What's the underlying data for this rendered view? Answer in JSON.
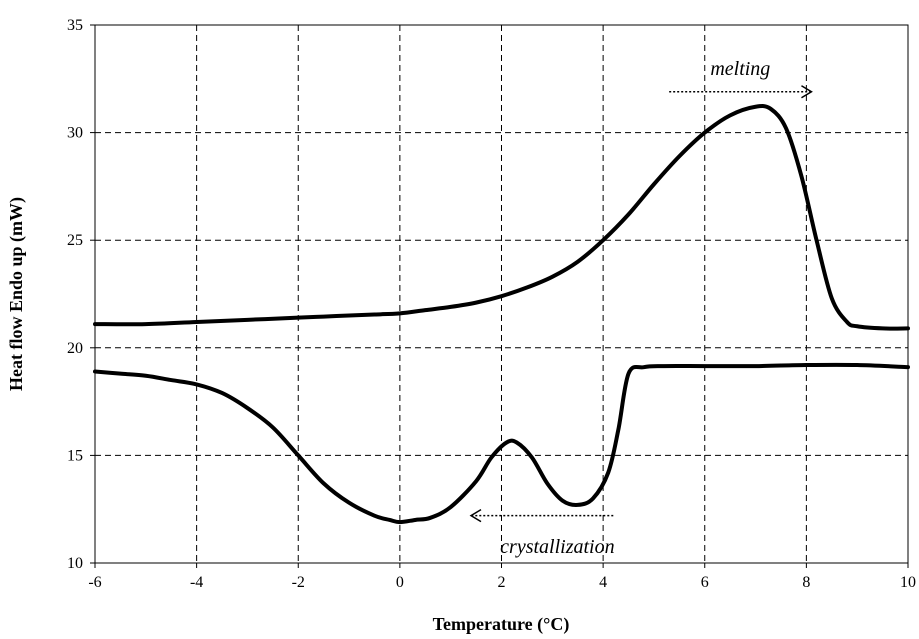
{
  "chart_data": {
    "type": "line",
    "xlabel": "Temperature (°C)",
    "ylabel": "Heat flow Endo up (mW)",
    "xlim": [
      -6,
      10
    ],
    "ylim": [
      10,
      35
    ],
    "xticks": [
      -6,
      -4,
      -2,
      0,
      2,
      4,
      6,
      8,
      10
    ],
    "yticks": [
      10,
      15,
      20,
      25,
      30,
      35
    ],
    "grid": true,
    "series": [
      {
        "x": [
          -6,
          -5,
          -4,
          -3,
          -2,
          -1.5,
          -1,
          -0.5,
          0,
          0.5,
          1,
          1.5,
          2,
          2.5,
          3,
          3.5,
          4,
          4.5,
          5,
          5.5,
          6,
          6.5,
          7,
          7.3,
          7.6,
          7.9,
          8.2,
          8.5,
          8.8,
          9,
          9.5,
          10
        ],
        "values": [
          21.1,
          21.1,
          21.2,
          21.3,
          21.4,
          21.45,
          21.5,
          21.55,
          21.6,
          21.75,
          21.9,
          22.1,
          22.4,
          22.8,
          23.3,
          24.0,
          25.0,
          26.2,
          27.6,
          28.9,
          30.0,
          30.8,
          31.2,
          31.1,
          30.2,
          28.0,
          25.0,
          22.3,
          21.2,
          21.0,
          20.9,
          20.9
        ]
      },
      {
        "x": [
          -6,
          -5.5,
          -5,
          -4.5,
          -4,
          -3.5,
          -3,
          -2.5,
          -2,
          -1.5,
          -1,
          -0.5,
          -0.2,
          0,
          0.3,
          0.6,
          1,
          1.5,
          1.8,
          2.1,
          2.3,
          2.6,
          2.9,
          3.2,
          3.5,
          3.8,
          4.1,
          4.3,
          4.5,
          4.8,
          5.2,
          6,
          7,
          8,
          9,
          10
        ],
        "values": [
          18.9,
          18.8,
          18.7,
          18.5,
          18.3,
          17.9,
          17.2,
          16.3,
          15.0,
          13.7,
          12.8,
          12.2,
          12.0,
          11.9,
          12.0,
          12.1,
          12.6,
          13.8,
          14.9,
          15.6,
          15.6,
          14.9,
          13.7,
          12.9,
          12.7,
          13.0,
          14.2,
          16.2,
          18.8,
          19.1,
          19.15,
          19.15,
          19.15,
          19.2,
          19.2,
          19.1
        ]
      }
    ],
    "annotations": [
      {
        "text": "melting",
        "arrow_from": [
          5.3,
          31.9
        ],
        "arrow_to": [
          8.1,
          31.9
        ],
        "text_at": [
          6.7,
          33.0
        ]
      },
      {
        "text": "crystallization",
        "arrow_from": [
          4.2,
          12.2
        ],
        "arrow_to": [
          1.4,
          12.2
        ],
        "text_at": [
          3.1,
          10.8
        ]
      }
    ]
  }
}
